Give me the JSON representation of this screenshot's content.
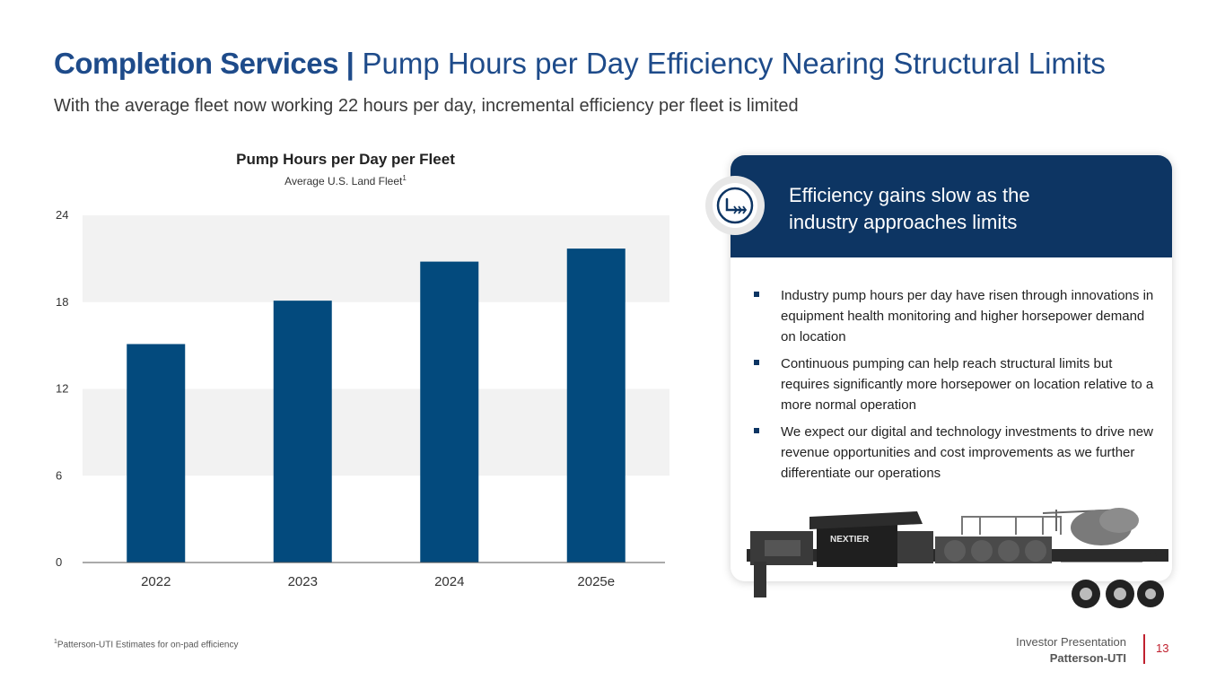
{
  "header": {
    "title_bold": "Completion Services |",
    "title_rest": "Pump Hours per Day Efficiency Nearing Structural Limits",
    "subtitle": "With the average fleet now working 22 hours per day, incremental efficiency per fleet is limited"
  },
  "chart_data": {
    "type": "bar",
    "title": "Pump Hours per Day per Fleet",
    "subtitle": "Average U.S. Land Fleet",
    "subtitle_sup": "1",
    "categories": [
      "2022",
      "2023",
      "2024",
      "2025e"
    ],
    "values": [
      15.1,
      18.1,
      20.8,
      21.7
    ],
    "ylim": [
      0,
      24
    ],
    "yticks": [
      "0",
      "6",
      "12",
      "18",
      "24"
    ],
    "xlabel": "",
    "ylabel": "",
    "bar_color": "#034a7d",
    "band_color": "#f2f2f2"
  },
  "card": {
    "heading": "Efficiency gains slow as the industry approaches limits",
    "icon": "pump-icon",
    "bullets": [
      "Industry pump hours per day have risen through innovations in equipment health monitoring and higher horsepower demand on location",
      "Continuous pumping can help reach structural limits but requires significantly more horsepower on location relative to a more normal operation",
      "We expect our digital and technology investments to drive new revenue opportunities and cost improvements as we further differentiate our operations"
    ],
    "truck_brand": "NEXTIER"
  },
  "footer": {
    "footnote_sup": "1",
    "footnote": "Patterson-UTI Estimates for on-pad efficiency",
    "presentation": "Investor Presentation",
    "company": "Patterson-UTI",
    "page": "13"
  },
  "colors": {
    "title_blue": "#1e4b8a",
    "navy": "#0d3563",
    "accent_red": "#c0212f"
  }
}
